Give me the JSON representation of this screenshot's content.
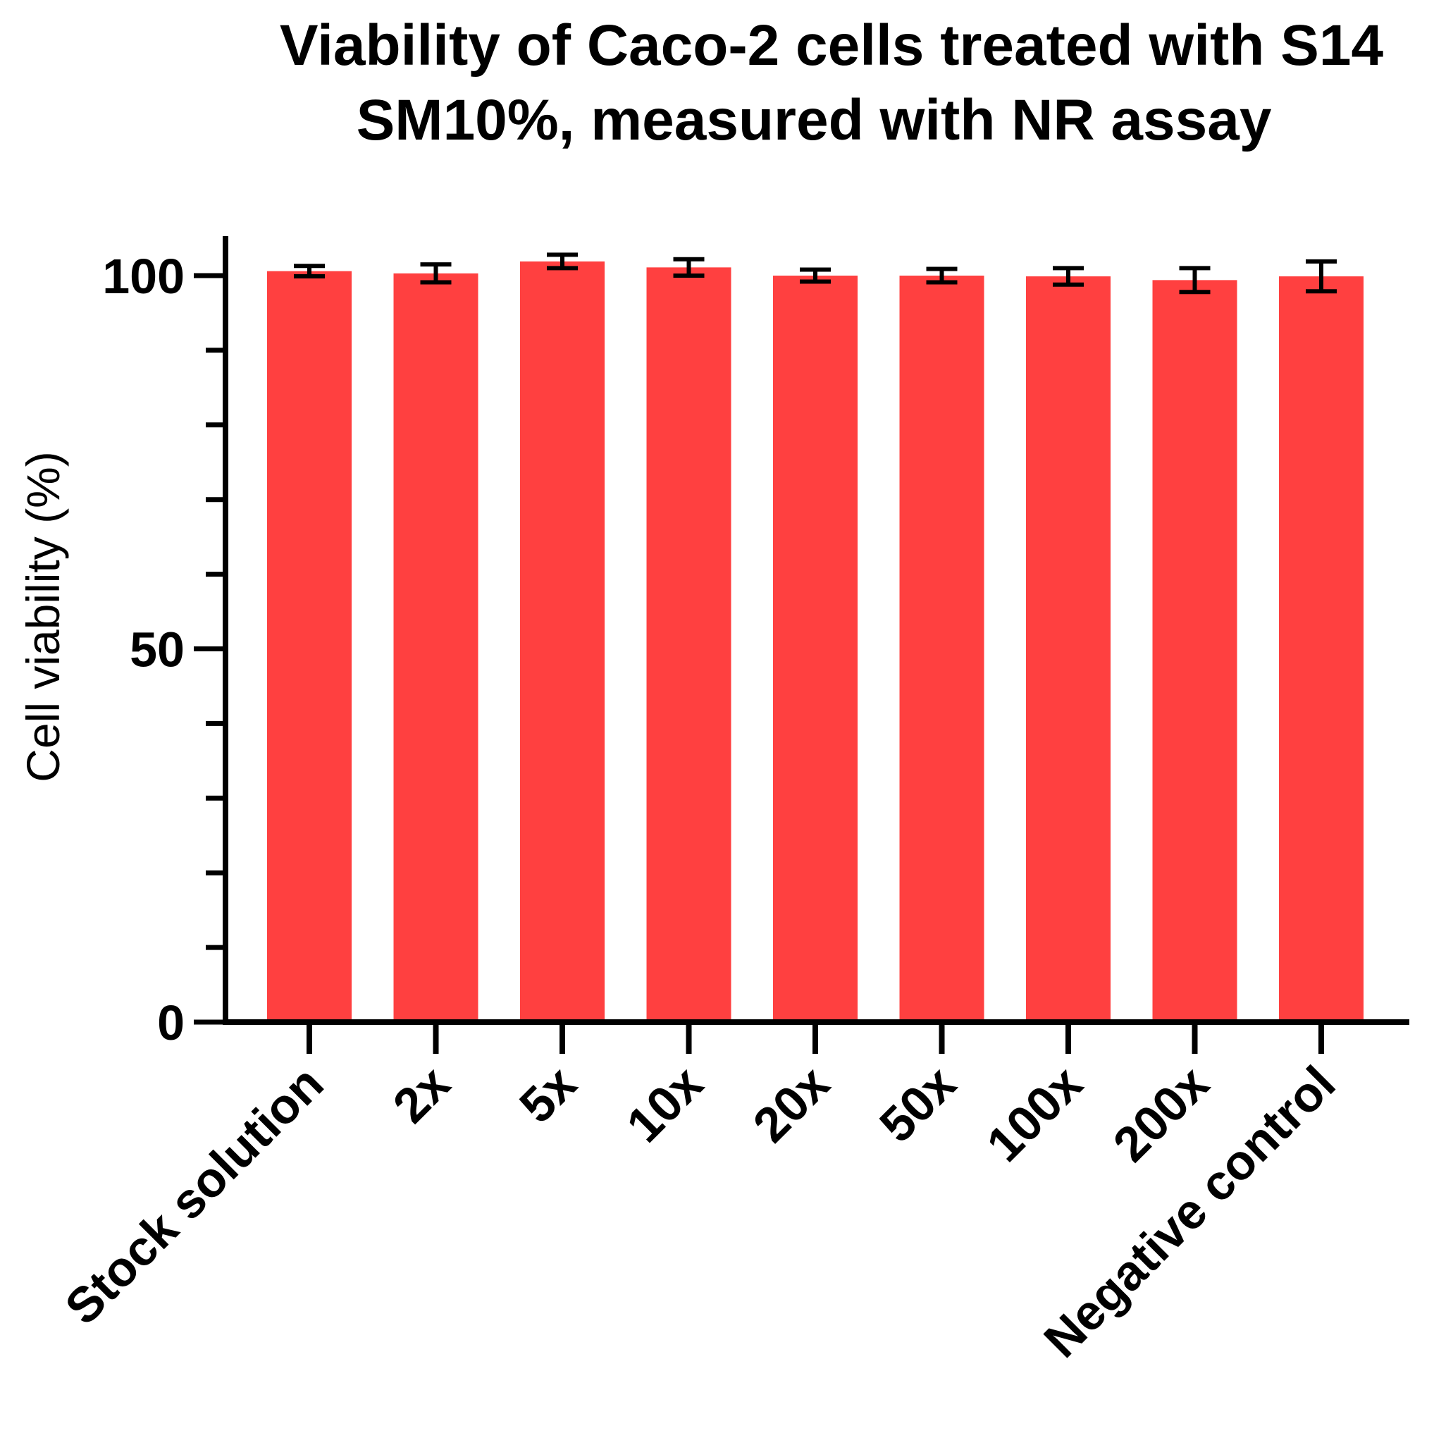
{
  "chart_data": {
    "type": "bar",
    "title_lines": [
      "Viability of Caco-2 cells treated with S14",
      "SM10%, measured with NR assay"
    ],
    "xlabel": "",
    "ylabel": "Cell viability (%)",
    "ylim": [
      0,
      105
    ],
    "yticks_major": [
      0,
      50,
      100
    ],
    "yticks_minor_step": 10,
    "categories": [
      "Stock solution",
      "2x",
      "5x",
      "10x",
      "20x",
      "50x",
      "100x",
      "200x",
      "Negative control"
    ],
    "values": [
      100.6,
      100.3,
      101.9,
      101.1,
      100.0,
      100.0,
      99.9,
      99.4,
      99.9
    ],
    "errors": [
      0.7,
      1.2,
      0.9,
      1.1,
      0.8,
      0.9,
      1.1,
      1.6,
      2.0
    ],
    "bar_color": "#ff4040",
    "grid": false
  }
}
